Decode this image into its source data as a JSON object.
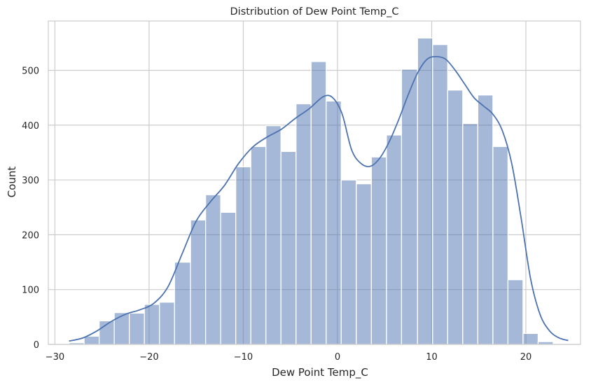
{
  "chart_data": {
    "type": "bar",
    "subtype": "histogram-with-kde",
    "title": "Distribution of Dew Point Temp_C",
    "xlabel": "Dew Point Temp_C",
    "ylabel": "Count",
    "xlim": [
      -30.7,
      25.8
    ],
    "ylim": [
      0,
      590
    ],
    "xticks": [
      -30,
      -20,
      -10,
      0,
      10,
      20
    ],
    "xtick_labels": [
      "−30",
      "−20",
      "−10",
      "0",
      "10",
      "20"
    ],
    "yticks": [
      0,
      100,
      200,
      300,
      400,
      500
    ],
    "ytick_labels": [
      "0",
      "100",
      "200",
      "300",
      "400",
      "500"
    ],
    "grid": true,
    "bar_color": "#4c72b0",
    "bar_opacity": 0.5,
    "kde_color": "#4c72b0",
    "bins": [
      [
        -28.5,
        -26.9,
        3
      ],
      [
        -26.9,
        -25.3,
        15
      ],
      [
        -25.3,
        -23.7,
        43
      ],
      [
        -23.7,
        -22.1,
        58
      ],
      [
        -22.1,
        -20.5,
        57
      ],
      [
        -20.5,
        -18.9,
        73
      ],
      [
        -18.9,
        -17.3,
        77
      ],
      [
        -17.3,
        -15.6,
        150
      ],
      [
        -15.6,
        -14.0,
        227
      ],
      [
        -14.0,
        -12.4,
        273
      ],
      [
        -12.4,
        -10.8,
        241
      ],
      [
        -10.8,
        -9.2,
        324
      ],
      [
        -9.2,
        -7.6,
        361
      ],
      [
        -7.6,
        -6.0,
        399
      ],
      [
        -6.0,
        -4.4,
        352
      ],
      [
        -4.4,
        -2.8,
        439
      ],
      [
        -2.8,
        -1.2,
        516
      ],
      [
        -1.2,
        0.4,
        444
      ],
      [
        0.4,
        2.0,
        300
      ],
      [
        2.0,
        3.6,
        293
      ],
      [
        3.6,
        5.2,
        342
      ],
      [
        5.2,
        6.8,
        382
      ],
      [
        6.8,
        8.5,
        502
      ],
      [
        8.5,
        10.1,
        559
      ],
      [
        10.1,
        11.7,
        547
      ],
      [
        11.7,
        13.3,
        464
      ],
      [
        13.3,
        14.9,
        403
      ],
      [
        14.9,
        16.5,
        455
      ],
      [
        16.5,
        18.1,
        361
      ],
      [
        18.1,
        19.7,
        118
      ],
      [
        19.7,
        21.3,
        20
      ],
      [
        21.3,
        22.9,
        5
      ]
    ],
    "kde": {
      "x": [
        -28.5,
        -27,
        -25.5,
        -24,
        -22.5,
        -21,
        -19.5,
        -18,
        -16.5,
        -15,
        -13.5,
        -12,
        -10.5,
        -9,
        -7.5,
        -6,
        -4.5,
        -3,
        -1.5,
        -0.5,
        0.5,
        1.5,
        2.5,
        3.5,
        4.5,
        5.5,
        6.5,
        7.5,
        8.5,
        9.5,
        10.5,
        11.5,
        12.5,
        13.5,
        14.5,
        15.5,
        16.5,
        17.5,
        18.5,
        19.5,
        20.5,
        21.5,
        22.5,
        23.5,
        24.5
      ],
      "y": [
        6,
        12,
        25,
        42,
        55,
        63,
        75,
        105,
        165,
        225,
        260,
        290,
        330,
        360,
        378,
        392,
        412,
        430,
        452,
        450,
        420,
        355,
        330,
        325,
        340,
        370,
        410,
        455,
        495,
        520,
        525,
        520,
        500,
        475,
        450,
        435,
        420,
        390,
        330,
        230,
        120,
        55,
        25,
        12,
        7
      ]
    }
  }
}
